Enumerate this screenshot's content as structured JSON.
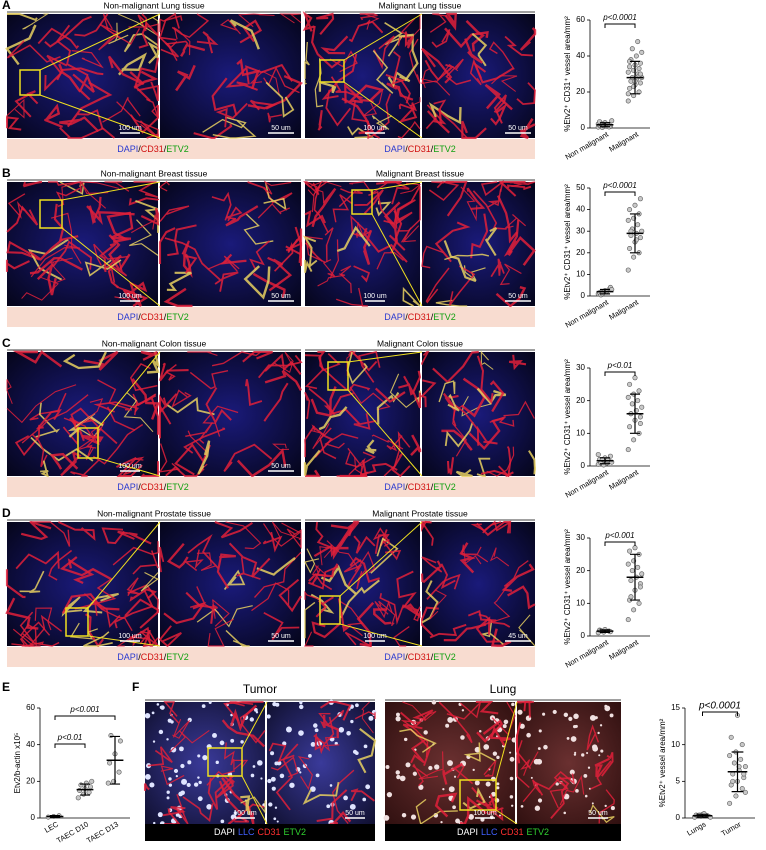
{
  "panels": [
    {
      "label": "A",
      "titles": [
        "Non-malignant Lung tissue",
        "Malignant Lung tissue"
      ],
      "scale_bars": [
        "100 um",
        "50 um",
        "100 um",
        "50 um"
      ],
      "stain": [
        "DAPI",
        "/",
        "CD31",
        "/",
        "ETV2"
      ]
    },
    {
      "label": "B",
      "titles": [
        "Non-malignant Breast tissue",
        "Malignant Breast tissue"
      ],
      "scale_bars": [
        "100 um",
        "50 um",
        "100 um",
        "50 um"
      ],
      "stain": [
        "DAPI",
        "/",
        "CD31",
        "/",
        "ETV2"
      ]
    },
    {
      "label": "C",
      "titles": [
        "Non-malignant Colon tissue",
        "Malignant Colon tissue"
      ],
      "scale_bars": [
        "100 um",
        "50 um"
      ],
      "stain": [
        "DAPI",
        "/",
        "CD31",
        "/",
        "ETV2"
      ]
    },
    {
      "label": "D",
      "titles": [
        "Non-malignant Prostate tissue",
        "Malignant Prostate tissue"
      ],
      "scale_bars": [
        "100 um",
        "50 um",
        "100 um",
        "45 um"
      ],
      "stain": [
        "DAPI",
        "/",
        "CD31",
        "/",
        "ETV2"
      ]
    },
    {
      "label": "E"
    },
    {
      "label": "F",
      "titles": [
        "Tumor",
        "Lung"
      ],
      "scale_bars": [
        "100 um",
        "50 um",
        "100 um",
        "50 um"
      ],
      "stain": [
        "DAPI",
        "LLC",
        "CD31",
        "ETV2"
      ]
    }
  ],
  "chart_data": [
    {
      "type": "dot",
      "y_label": "%Etv2⁺ CD31⁺ vessel area/mm²",
      "categories": [
        "Non malignant",
        "Malignant"
      ],
      "values": [
        [
          0.5,
          1,
          2,
          1.5,
          3,
          0.8,
          2.5,
          1,
          4,
          0.3,
          1.8,
          2.2,
          1.2,
          0.6,
          3.5
        ],
        [
          15,
          18,
          20,
          22,
          24,
          25,
          26,
          27,
          28,
          28,
          30,
          31,
          32,
          33,
          34,
          35,
          36,
          38,
          40,
          42,
          44,
          48,
          19,
          23,
          29,
          37,
          26,
          30
        ]
      ],
      "means": [
        1.8,
        28
      ],
      "errors": [
        1.1,
        9
      ],
      "annotations": [
        "p<0.0001"
      ],
      "ylim": [
        0,
        60
      ],
      "yticks": [
        0,
        20,
        40,
        60
      ],
      "color": "#c8c8c8"
    },
    {
      "type": "dot",
      "y_label": "%Etv2⁺ CD31⁺ vessel area/mm²",
      "categories": [
        "Non malignant",
        "Malignant"
      ],
      "values": [
        [
          1,
          2,
          3,
          1.5,
          2.5,
          4,
          0.5,
          2,
          3,
          1
        ],
        [
          12,
          18,
          20,
          22,
          25,
          27,
          28,
          29,
          30,
          31,
          33,
          35,
          36,
          38,
          40,
          42,
          45,
          30,
          26
        ]
      ],
      "means": [
        2,
        29
      ],
      "errors": [
        1,
        9
      ],
      "annotations": [
        "p<0.0001"
      ],
      "ylim": [
        0,
        50
      ],
      "yticks": [
        0,
        10,
        20,
        30,
        40,
        50
      ],
      "color": "#c8c8c8"
    },
    {
      "type": "dot",
      "y_label": "%Etv2⁺ CD31⁺ vessel area/mm²",
      "categories": [
        "Non malignant",
        "Malignant"
      ],
      "values": [
        [
          0.5,
          1,
          1.5,
          2,
          2.5,
          3,
          1,
          0.8,
          1.2,
          2,
          1.7,
          3.5,
          0.3
        ],
        [
          5,
          8,
          10,
          12,
          14,
          15,
          16,
          17,
          18,
          19,
          20,
          21,
          22,
          23,
          25,
          27,
          13,
          16
        ]
      ],
      "means": [
        1.6,
        16
      ],
      "errors": [
        0.9,
        6
      ],
      "annotations": [
        "p<0.01"
      ],
      "ylim": [
        0,
        30
      ],
      "yticks": [
        0,
        10,
        20,
        30
      ],
      "color": "#c8c8c8"
    },
    {
      "type": "dot",
      "y_label": "%Etv2⁺ CD31⁺ vessel area/mm²",
      "categories": [
        "Non malignant",
        "Malignant"
      ],
      "values": [
        [
          1,
          1.2,
          1.5,
          1.8,
          2,
          1.3,
          1.6
        ],
        [
          5,
          8,
          10,
          11,
          14,
          16,
          17,
          18,
          19,
          20,
          21,
          22,
          23,
          25,
          26,
          27,
          15,
          12
        ]
      ],
      "means": [
        1.5,
        18
      ],
      "errors": [
        0.4,
        7
      ],
      "annotations": [
        "p<0.001"
      ],
      "ylim": [
        0,
        30
      ],
      "yticks": [
        0,
        10,
        20,
        30
      ],
      "color": "#c8c8c8"
    },
    {
      "type": "dot",
      "y_label": "Etv2/b-actin x10⁵",
      "categories": [
        "LEC",
        "TAEC D10",
        "TAEC D13"
      ],
      "values": [
        [
          0.5,
          0.8,
          1.2
        ],
        [
          11,
          13,
          14,
          15,
          16,
          17,
          18,
          19,
          20
        ],
        [
          19,
          20,
          25,
          30,
          35,
          42,
          45
        ]
      ],
      "means": [
        0.8,
        15.5,
        31.5
      ],
      "errors": [
        0.5,
        3,
        13
      ],
      "annotations": [
        "p<0.01",
        "p<0.001"
      ],
      "ylim": [
        0,
        60
      ],
      "yticks": [
        0,
        20,
        40,
        60
      ],
      "color": "#c8c8c8"
    },
    {
      "type": "dot",
      "y_label": "%Etv2⁺ vessel area/mm²",
      "categories": [
        "Lungs",
        "Tumor"
      ],
      "values": [
        [
          0.1,
          0.2,
          0.3,
          0.4,
          0.5,
          0.2,
          0.3,
          0.6,
          0.1,
          0.4
        ],
        [
          2,
          3,
          4,
          4.5,
          5,
          5.5,
          6,
          6.5,
          7,
          7.5,
          8,
          8.5,
          9,
          10,
          11,
          14,
          6,
          5,
          7,
          3.5
        ]
      ],
      "means": [
        0.3,
        6.3
      ],
      "errors": [
        0.2,
        2.7
      ],
      "annotations": [
        "p<0.0001"
      ],
      "ylim": [
        0,
        15
      ],
      "yticks": [
        0,
        5,
        10,
        15
      ],
      "color": "#c8c8c8"
    }
  ]
}
